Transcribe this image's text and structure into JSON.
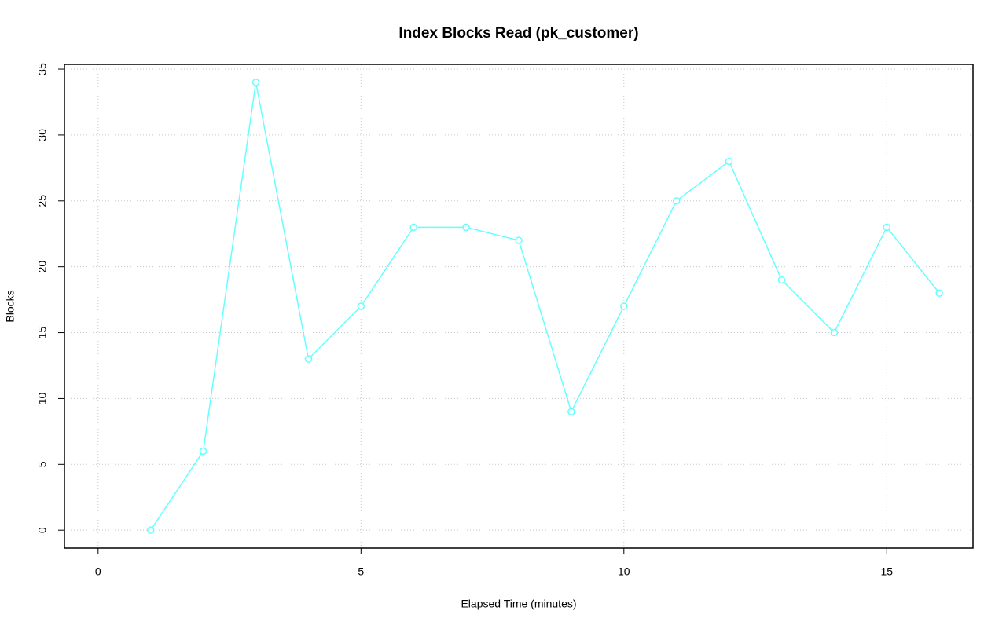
{
  "chart_data": {
    "type": "line",
    "title": "Index Blocks Read (pk_customer)",
    "xlabel": "Elapsed Time (minutes)",
    "ylabel": "Blocks",
    "x": [
      1,
      2,
      3,
      4,
      5,
      6,
      7,
      8,
      9,
      10,
      11,
      12,
      13,
      14,
      15,
      16
    ],
    "values": [
      0,
      6,
      34,
      13,
      17,
      23,
      23,
      22,
      9,
      17,
      25,
      28,
      19,
      15,
      23,
      18
    ],
    "color": "#66ffff",
    "xlim": [
      -0.64,
      16.64
    ],
    "xticks": [
      0,
      5,
      10,
      15
    ],
    "ylim": [
      -1.36,
      35.36
    ],
    "yticks": [
      0,
      5,
      10,
      15,
      20,
      25,
      30,
      35
    ],
    "grid": true
  }
}
